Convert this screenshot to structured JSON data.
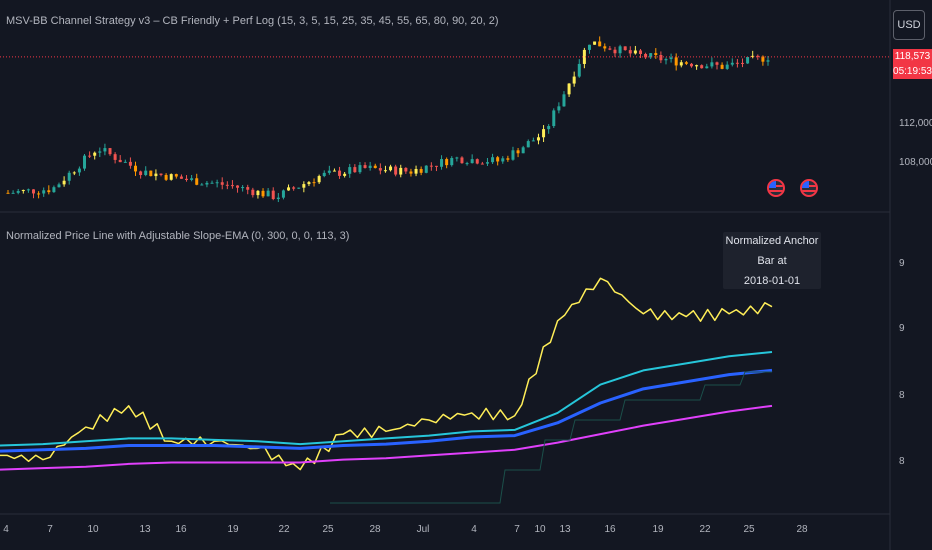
{
  "pane1": {
    "title": "MSV-BB Channel Strategy v3 – CB Friendly + Perf Log (15, 3, 5, 15, 25, 35, 45, 55, 65, 80, 90, 20, 2)",
    "currency_button": "USD",
    "price_label": "118,573",
    "countdown_label": "05:19:53",
    "y_ticks": [
      "112,000",
      "108,000"
    ],
    "colors": {
      "up": "#26a69a",
      "down": "#ef5350",
      "accent_up": "#ffee58",
      "accent_down": "#ff9800",
      "price_line": "#f23645"
    }
  },
  "pane2": {
    "title": "Normalized Price Line with Adjustable Slope-EMA (0, 300, 0, 0, 113, 3)",
    "tooltip_line1": "Normalized Anchor Bar at",
    "tooltip_line2": "2018-01-01",
    "y_ticks": [
      "9",
      "9",
      "8",
      "8"
    ]
  },
  "x_ticks": [
    "4",
    "7",
    "10",
    "13",
    "16",
    "19",
    "22",
    "25",
    "28",
    "Jul",
    "4",
    "7",
    "10",
    "13",
    "16",
    "19",
    "22",
    "25",
    "28"
  ],
  "chart_data": [
    {
      "type": "candlestick",
      "title": "MSV-BB Channel Strategy v3 – CB Friendly + Perf Log (15, 3, 5, 15, 25, 35, 45, 55, 65, 80, 90, 20, 2)",
      "x": [
        "Jun 4",
        "Jun 7",
        "Jun 10",
        "Jun 13",
        "Jun 16",
        "Jun 19",
        "Jun 22",
        "Jun 25",
        "Jun 28",
        "Jul 1",
        "Jul 4",
        "Jul 7",
        "Jul 10",
        "Jul 13",
        "Jul 16",
        "Jul 19",
        "Jul 22",
        "Jul 23"
      ],
      "close": [
        105200,
        105600,
        109600,
        107300,
        106500,
        105900,
        104800,
        106900,
        107600,
        107300,
        108600,
        108300,
        111100,
        120100,
        118800,
        118100,
        117600,
        118573
      ],
      "last_price": 118573,
      "ylim": [
        104000,
        122000
      ]
    },
    {
      "type": "line",
      "title": "Normalized Price Line with Adjustable Slope-EMA (0, 300, 0, 0, 113, 3)",
      "x": [
        "Jun 1",
        "Jun 4",
        "Jun 7",
        "Jun 10",
        "Jun 13",
        "Jun 16",
        "Jun 19",
        "Jun 22",
        "Jun 25",
        "Jun 28",
        "Jul 1",
        "Jul 4",
        "Jul 7",
        "Jul 10",
        "Jul 13",
        "Jul 16",
        "Jul 19",
        "Jul 22",
        "Jul 23"
      ],
      "ylim": [
        7.6,
        9.4
      ],
      "series": [
        {
          "values": [
            7.95,
            7.92,
            8.15,
            8.3,
            8.05,
            8.05,
            8.0,
            7.85,
            8.1,
            8.12,
            8.2,
            8.25,
            8.23,
            8.9,
            9.2,
            8.95,
            8.93,
            8.95,
            9.0
          ],
          "color": "#ffee58"
        },
        {
          "values": [
            8.02,
            8.03,
            8.05,
            8.07,
            8.07,
            8.06,
            8.05,
            8.03,
            8.05,
            8.07,
            8.09,
            8.12,
            8.13,
            8.25,
            8.45,
            8.55,
            8.6,
            8.65,
            8.68
          ],
          "color": "#26c6da"
        },
        {
          "values": [
            7.98,
            7.99,
            8.0,
            8.02,
            8.02,
            8.02,
            8.01,
            8.0,
            8.02,
            8.03,
            8.05,
            8.08,
            8.09,
            8.18,
            8.32,
            8.42,
            8.47,
            8.52,
            8.55
          ],
          "color": "#2962ff"
        },
        {
          "values": [
            7.85,
            7.86,
            7.87,
            7.89,
            7.9,
            7.9,
            7.9,
            7.9,
            7.92,
            7.93,
            7.95,
            7.97,
            7.99,
            8.04,
            8.1,
            8.16,
            8.21,
            8.26,
            8.3
          ],
          "color": "#e040fb"
        }
      ]
    }
  ]
}
